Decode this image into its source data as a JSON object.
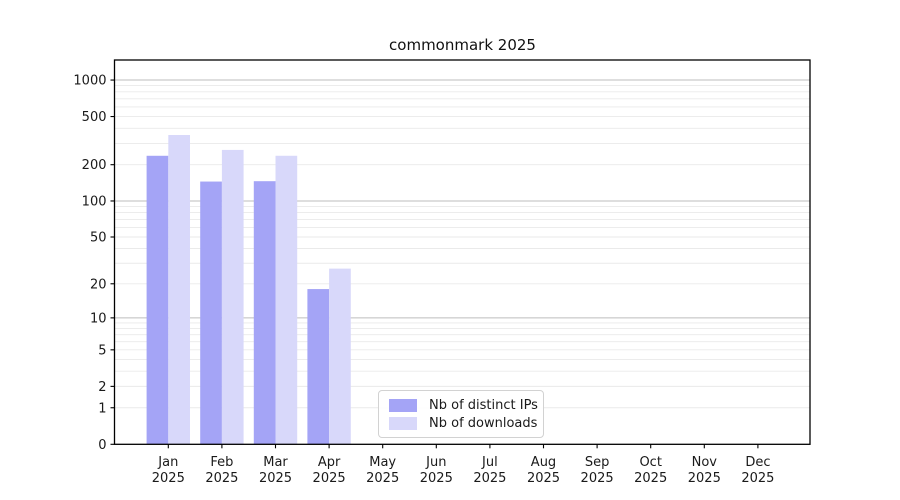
{
  "chart_data": {
    "type": "bar",
    "title": "commonmark 2025",
    "scale": "log1p",
    "grid": true,
    "legend_position": "lower center",
    "categories": [
      "Jan 2025",
      "Feb 2025",
      "Mar 2025",
      "Apr 2025",
      "May 2025",
      "Jun 2025",
      "Jul 2025",
      "Aug 2025",
      "Sep 2025",
      "Oct 2025",
      "Nov 2025",
      "Dec 2025"
    ],
    "series": [
      {
        "name": "Nb of distinct IPs",
        "color": "#a4a4f6",
        "values": [
          237,
          145,
          146,
          18,
          0,
          0,
          0,
          0,
          0,
          0,
          0,
          0
        ]
      },
      {
        "name": "Nb of downloads",
        "color": "#d8d8fa",
        "values": [
          352,
          265,
          237,
          27,
          0,
          0,
          0,
          0,
          0,
          0,
          0,
          0
        ]
      }
    ],
    "yticks": [
      0,
      1,
      2,
      5,
      10,
      20,
      50,
      100,
      200,
      500,
      1000
    ],
    "ylim": [
      0,
      1400
    ],
    "xlabel": "",
    "ylabel": "",
    "colors": {
      "axis": "#000000",
      "text": "#1a1a1a",
      "grid_major": "#bdbdbd",
      "grid_minor": "#eaeaea",
      "legend_border": "#d2d2d2"
    }
  }
}
